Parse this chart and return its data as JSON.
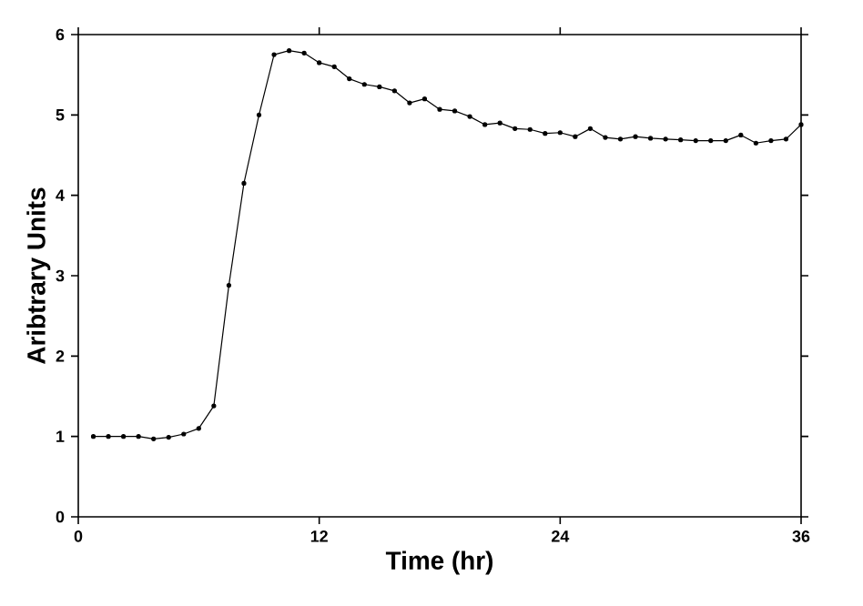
{
  "chart_data": {
    "type": "line",
    "xlabel": "Time  (hr)",
    "ylabel": "Aribtrary Units",
    "x": [
      0.75,
      1.5,
      2.25,
      3,
      3.75,
      4.5,
      5.25,
      6,
      6.75,
      7.5,
      8.25,
      9,
      9.75,
      10.5,
      11.25,
      12,
      12.75,
      13.5,
      14.25,
      15,
      15.75,
      16.5,
      17.25,
      18,
      18.75,
      19.5,
      20.25,
      21,
      21.75,
      22.5,
      23.25,
      24,
      24.75,
      25.5,
      26.25,
      27,
      27.75,
      28.5,
      29.25,
      30,
      30.75,
      31.5,
      32.25,
      33,
      33.75,
      34.5,
      35.25,
      36
    ],
    "values": [
      1.0,
      1.0,
      1.0,
      1.0,
      0.97,
      0.99,
      1.03,
      1.1,
      1.38,
      2.88,
      4.15,
      5.0,
      5.75,
      5.8,
      5.77,
      5.65,
      5.6,
      5.45,
      5.38,
      5.35,
      5.3,
      5.15,
      5.2,
      5.07,
      5.05,
      4.98,
      4.88,
      4.9,
      4.83,
      4.82,
      4.77,
      4.78,
      4.73,
      4.83,
      4.72,
      4.7,
      4.73,
      4.71,
      4.7,
      4.69,
      4.68,
      4.68,
      4.68,
      4.75,
      4.65,
      4.68,
      4.7,
      4.88
    ],
    "color": "#000000",
    "marker": "circle",
    "line_style": "solid",
    "xlim": [
      0,
      36
    ],
    "xticks": [
      0,
      12,
      24,
      36
    ],
    "ylim": [
      0,
      6
    ],
    "yticks": [
      0,
      1,
      2,
      3,
      4,
      5,
      6
    ],
    "grid": false
  }
}
